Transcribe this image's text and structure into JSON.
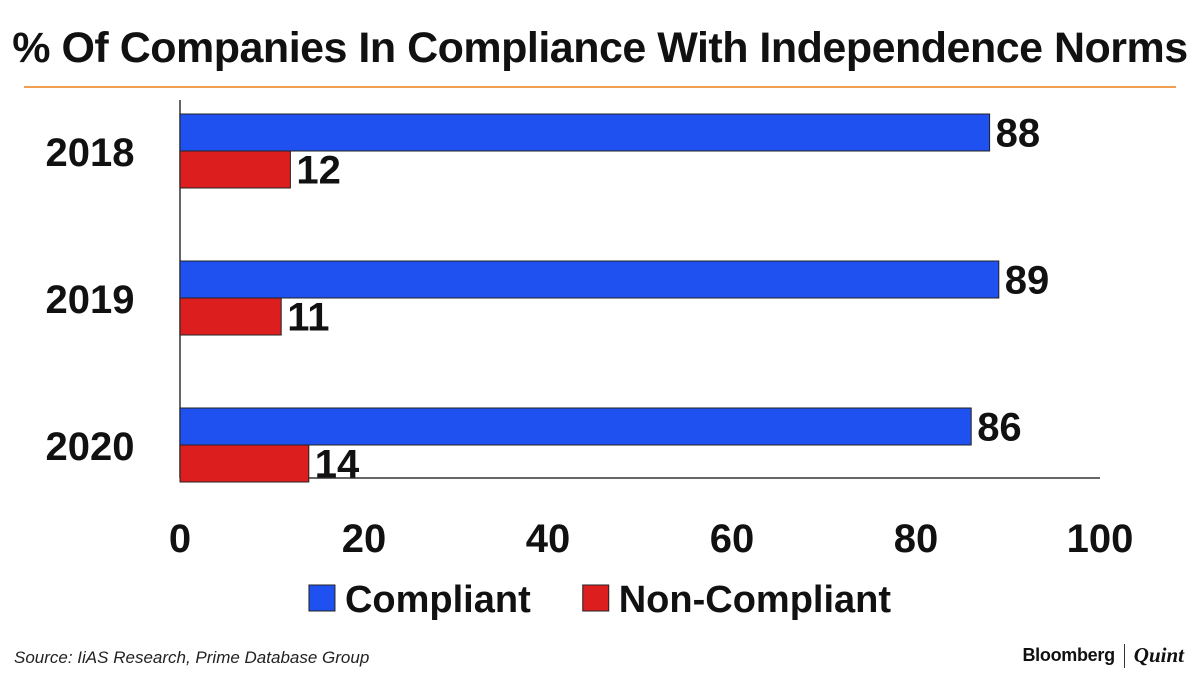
{
  "chart_data": {
    "type": "bar",
    "orientation": "horizontal",
    "title": "% Of Companies In Compliance With Independence Norms",
    "categories": [
      "2018",
      "2019",
      "2020"
    ],
    "series": [
      {
        "name": "Compliant",
        "values": [
          88,
          89,
          86
        ],
        "color": "#1f50f0"
      },
      {
        "name": "Non-Compliant",
        "values": [
          12,
          11,
          14
        ],
        "color": "#dd1e1e"
      }
    ],
    "xlim": [
      0,
      100
    ],
    "xticks": [
      0,
      20,
      40,
      60,
      80,
      100
    ],
    "xlabel": "",
    "ylabel": "",
    "grid": false,
    "legend": "bottom",
    "data_labels": true
  },
  "source": "Source:  IiAS Research, Prime Database Group",
  "brand": {
    "primary": "Bloomberg",
    "secondary": "Quint"
  }
}
